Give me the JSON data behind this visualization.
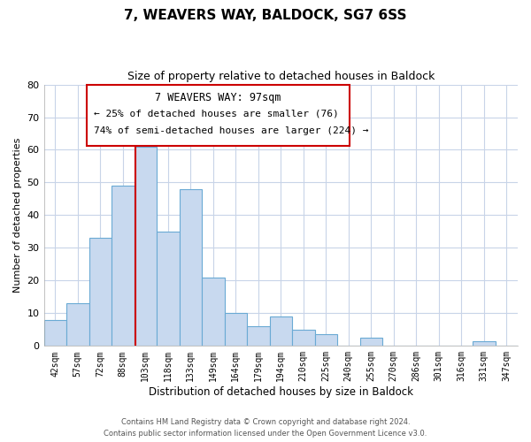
{
  "title": "7, WEAVERS WAY, BALDOCK, SG7 6SS",
  "subtitle": "Size of property relative to detached houses in Baldock",
  "xlabel": "Distribution of detached houses by size in Baldock",
  "ylabel": "Number of detached properties",
  "bar_labels": [
    "42sqm",
    "57sqm",
    "72sqm",
    "88sqm",
    "103sqm",
    "118sqm",
    "133sqm",
    "149sqm",
    "164sqm",
    "179sqm",
    "194sqm",
    "210sqm",
    "225sqm",
    "240sqm",
    "255sqm",
    "270sqm",
    "286sqm",
    "301sqm",
    "316sqm",
    "331sqm",
    "347sqm"
  ],
  "bar_values": [
    8,
    13,
    33,
    49,
    61,
    35,
    48,
    21,
    10,
    6,
    9,
    5,
    3.5,
    0,
    2.5,
    0,
    0,
    0,
    0,
    1.5,
    0
  ],
  "bar_color": "#c8d9ef",
  "bar_edge_color": "#6aaad4",
  "vline_color": "#cc0000",
  "vline_x_index": 3.55,
  "ylim": [
    0,
    80
  ],
  "yticks": [
    0,
    10,
    20,
    30,
    40,
    50,
    60,
    70,
    80
  ],
  "annotation_title": "7 WEAVERS WAY: 97sqm",
  "annotation_line1": "← 25% of detached houses are smaller (76)",
  "annotation_line2": "74% of semi-detached houses are larger (224) →",
  "footer1": "Contains HM Land Registry data © Crown copyright and database right 2024.",
  "footer2": "Contains public sector information licensed under the Open Government Licence v3.0.",
  "bg_color": "#ffffff",
  "grid_color": "#c8d4e8"
}
